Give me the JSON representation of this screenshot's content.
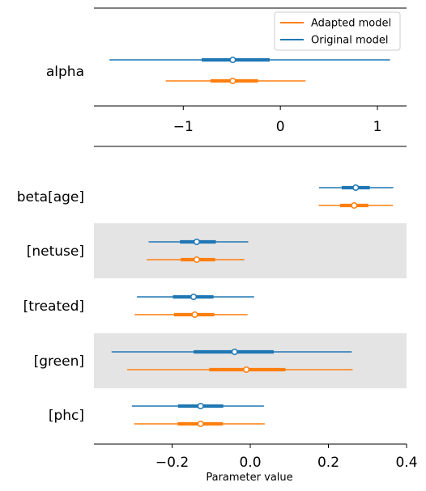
{
  "chart_data": [
    {
      "type": "forest",
      "title": "",
      "xlabel": "",
      "xlim": [
        -1.92,
        1.3
      ],
      "xticks": [
        -1,
        0,
        1
      ],
      "xtick_labels": [
        "−1",
        "0",
        "1"
      ],
      "legend": {
        "placement": "top-right",
        "entries": [
          {
            "label": "Adapted model",
            "color": "#ff7f0e"
          },
          {
            "label": "Original model",
            "color": "#1f77b4"
          }
        ]
      },
      "rows": [
        {
          "label": "alpha",
          "shaded": false,
          "estimates": [
            {
              "series": "Original model",
              "mean": -0.49,
              "hdi_inner": [
                -0.81,
                -0.11
              ],
              "hdi_outer": [
                -1.76,
                1.13
              ]
            },
            {
              "series": "Adapted model",
              "mean": -0.49,
              "hdi_inner": [
                -0.72,
                -0.23
              ],
              "hdi_outer": [
                -1.18,
                0.26
              ]
            }
          ]
        }
      ]
    },
    {
      "type": "forest",
      "title": "",
      "xlabel": "Parameter value",
      "xlim": [
        -0.4,
        0.4
      ],
      "xticks": [
        -0.2,
        0.0,
        0.2,
        0.4
      ],
      "xtick_labels": [
        "−0.2",
        "0.0",
        "0.2",
        "0.4"
      ],
      "rows": [
        {
          "label": "beta[age]",
          "shaded": false,
          "estimates": [
            {
              "series": "Original model",
              "mean": 0.27,
              "hdi_inner": [
                0.234,
                0.306
              ],
              "hdi_outer": [
                0.176,
                0.366
              ]
            },
            {
              "series": "Adapted model",
              "mean": 0.266,
              "hdi_inner": [
                0.23,
                0.302
              ],
              "hdi_outer": [
                0.175,
                0.365
              ]
            }
          ]
        },
        {
          "label": "[netuse]",
          "shaded": true,
          "estimates": [
            {
              "series": "Original model",
              "mean": -0.137,
              "hdi_inner": [
                -0.18,
                -0.088
              ],
              "hdi_outer": [
                -0.26,
                -0.005
              ]
            },
            {
              "series": "Adapted model",
              "mean": -0.137,
              "hdi_inner": [
                -0.178,
                -0.09
              ],
              "hdi_outer": [
                -0.265,
                -0.015
              ]
            }
          ]
        },
        {
          "label": "[treated]",
          "shaded": false,
          "estimates": [
            {
              "series": "Original model",
              "mean": -0.145,
              "hdi_inner": [
                -0.198,
                -0.094
              ],
              "hdi_outer": [
                -0.29,
                0.01
              ]
            },
            {
              "series": "Adapted model",
              "mean": -0.142,
              "hdi_inner": [
                -0.195,
                -0.092
              ],
              "hdi_outer": [
                -0.296,
                -0.007
              ]
            }
          ]
        },
        {
          "label": "[green]",
          "shaded": true,
          "estimates": [
            {
              "series": "Original model",
              "mean": -0.04,
              "hdi_inner": [
                -0.145,
                0.06
              ],
              "hdi_outer": [
                -0.355,
                0.26
              ]
            },
            {
              "series": "Adapted model",
              "mean": -0.01,
              "hdi_inner": [
                -0.105,
                0.09
              ],
              "hdi_outer": [
                -0.315,
                0.262
              ]
            }
          ]
        },
        {
          "label": "[phc]",
          "shaded": false,
          "estimates": [
            {
              "series": "Original model",
              "mean": -0.127,
              "hdi_inner": [
                -0.185,
                -0.069
              ],
              "hdi_outer": [
                -0.303,
                0.035
              ]
            },
            {
              "series": "Adapted model",
              "mean": -0.127,
              "hdi_inner": [
                -0.186,
                -0.07
              ],
              "hdi_outer": [
                -0.297,
                0.037
              ]
            }
          ]
        }
      ]
    }
  ],
  "colors": {
    "original": "#1f77b4",
    "adapted": "#ff7f0e",
    "band": "#e4e4e4"
  }
}
